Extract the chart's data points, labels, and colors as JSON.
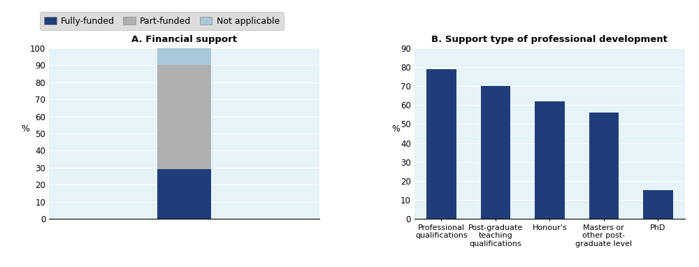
{
  "panel_a_title": "A. Financial support",
  "panel_b_title": "B. Support type of professional development",
  "legend_labels": [
    "Fully-funded",
    "Part-funded",
    "Not applicable"
  ],
  "stacked_colors": [
    "#1f3d7a",
    "#b0b0b0",
    "#aac8d8"
  ],
  "stacked_values": {
    "Fully-funded": 29,
    "Part-funded": 61,
    "Not applicable": 10
  },
  "panel_a_ylim": [
    0,
    100
  ],
  "panel_a_yticks": [
    0,
    10,
    20,
    30,
    40,
    50,
    60,
    70,
    80,
    90,
    100
  ],
  "panel_b_categories": [
    "Professional\nqualifications",
    "Post-graduate\nteaching\nqualifications",
    "Honour's",
    "Masters or\nother post-\ngraduate level",
    "PhD"
  ],
  "panel_b_values": [
    79,
    70,
    62,
    56,
    15
  ],
  "panel_b_color": "#1f3d7a",
  "panel_b_ylim": [
    0,
    90
  ],
  "panel_b_yticks": [
    0,
    10,
    20,
    30,
    40,
    50,
    60,
    70,
    80,
    90
  ],
  "ylabel": "%",
  "background_color": "#e6f3f8",
  "legend_bg": "#d4d4d4",
  "fig_width": 10.0,
  "fig_height": 3.82,
  "dpi": 100
}
